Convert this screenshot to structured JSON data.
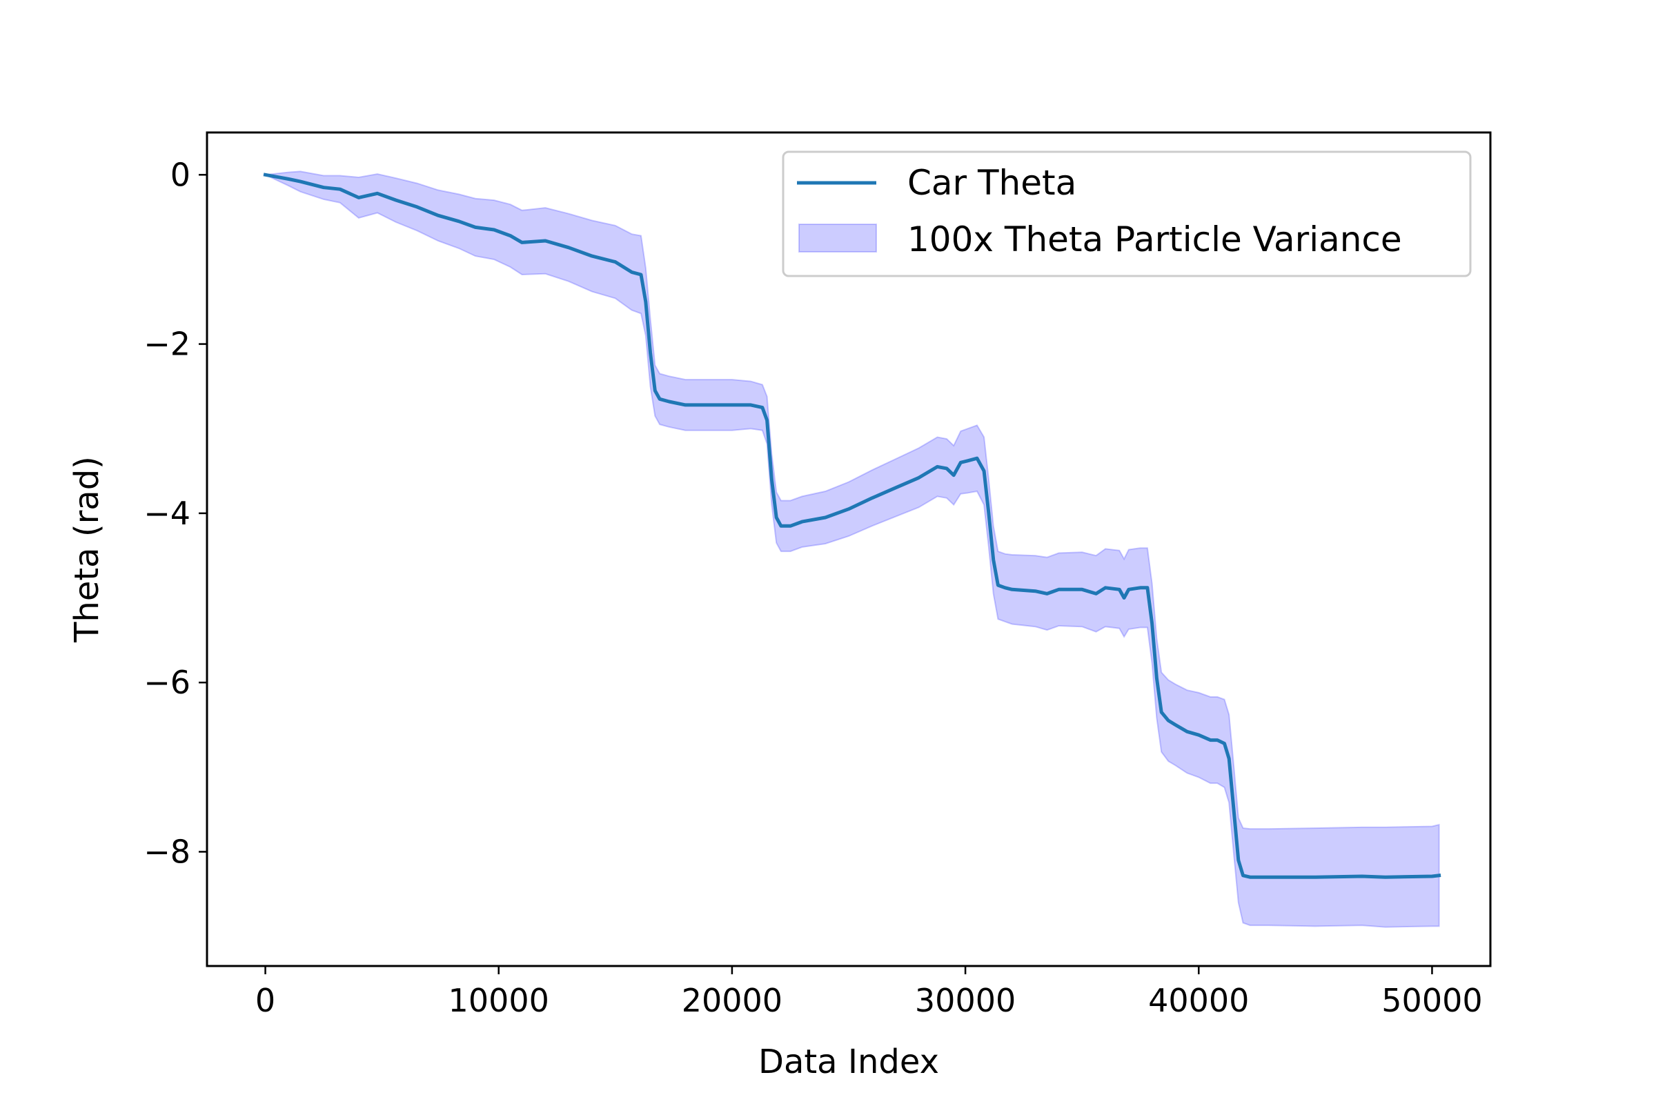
{
  "chart_data": {
    "type": "line",
    "title": "",
    "xlabel": "Data Index",
    "ylabel": "Theta (rad)",
    "xlim": [
      -2500,
      52500
    ],
    "ylim": [
      -9.35,
      0.5
    ],
    "xticks": [
      0,
      10000,
      20000,
      30000,
      40000,
      50000
    ],
    "xtick_labels": [
      "0",
      "10000",
      "20000",
      "30000",
      "40000",
      "50000"
    ],
    "yticks": [
      0,
      -2,
      -4,
      -6,
      -8
    ],
    "ytick_labels": [
      "0",
      "−2",
      "−4",
      "−6",
      "−8"
    ],
    "grid": false,
    "legend_position": "upper right",
    "colors": {
      "line": "#1f77b4",
      "band_fill": "#0000ff",
      "band_opacity": 0.2
    },
    "series": [
      {
        "name": "Car Theta",
        "kind": "line",
        "x": [
          0,
          1000,
          1500,
          2500,
          3200,
          4000,
          4800,
          5600,
          6500,
          7400,
          8300,
          9000,
          9800,
          10500,
          11000,
          12000,
          13000,
          14000,
          15000,
          15700,
          16100,
          16300,
          16500,
          16700,
          16900,
          17300,
          18000,
          19000,
          20000,
          20800,
          21300,
          21500,
          21700,
          21900,
          22100,
          22500,
          23000,
          24000,
          25000,
          26000,
          27000,
          28000,
          28800,
          29200,
          29500,
          29800,
          30100,
          30500,
          30800,
          31000,
          31200,
          31400,
          31700,
          32000,
          33000,
          33500,
          34000,
          35000,
          35600,
          36000,
          36600,
          36800,
          37000,
          37500,
          37800,
          38000,
          38200,
          38400,
          38700,
          39000,
          39500,
          40000,
          40500,
          40800,
          41100,
          41300,
          41500,
          41700,
          41900,
          42200,
          43000,
          45000,
          47000,
          48000,
          50000,
          50300
        ],
        "y": [
          0,
          -0.05,
          -0.08,
          -0.15,
          -0.17,
          -0.27,
          -0.22,
          -0.3,
          -0.38,
          -0.48,
          -0.55,
          -0.62,
          -0.65,
          -0.72,
          -0.8,
          -0.78,
          -0.86,
          -0.96,
          -1.03,
          -1.15,
          -1.18,
          -1.5,
          -2.1,
          -2.55,
          -2.65,
          -2.68,
          -2.72,
          -2.72,
          -2.72,
          -2.72,
          -2.75,
          -2.9,
          -3.6,
          -4.05,
          -4.15,
          -4.15,
          -4.1,
          -4.05,
          -3.95,
          -3.82,
          -3.7,
          -3.58,
          -3.45,
          -3.47,
          -3.55,
          -3.4,
          -3.38,
          -3.35,
          -3.5,
          -4.0,
          -4.55,
          -4.85,
          -4.88,
          -4.9,
          -4.92,
          -4.95,
          -4.9,
          -4.9,
          -4.95,
          -4.88,
          -4.9,
          -5.0,
          -4.9,
          -4.88,
          -4.88,
          -5.3,
          -5.95,
          -6.35,
          -6.45,
          -6.5,
          -6.58,
          -6.62,
          -6.68,
          -6.68,
          -6.72,
          -6.9,
          -7.5,
          -8.1,
          -8.28,
          -8.3,
          -8.3,
          -8.3,
          -8.29,
          -8.3,
          -8.29,
          -8.28
        ]
      },
      {
        "name": "100x Theta Particle Variance",
        "kind": "band",
        "x": [
          0,
          1000,
          1500,
          2500,
          3200,
          4000,
          4800,
          5600,
          6500,
          7400,
          8300,
          9000,
          9800,
          10500,
          11000,
          12000,
          13000,
          14000,
          15000,
          15700,
          16100,
          16300,
          16500,
          16700,
          16900,
          17300,
          18000,
          19000,
          20000,
          20800,
          21300,
          21500,
          21700,
          21900,
          22100,
          22500,
          23000,
          24000,
          25000,
          26000,
          27000,
          28000,
          28800,
          29200,
          29500,
          29800,
          30100,
          30500,
          30800,
          31000,
          31200,
          31400,
          31700,
          32000,
          33000,
          33500,
          34000,
          35000,
          35600,
          36000,
          36600,
          36800,
          37000,
          37500,
          37800,
          38000,
          38200,
          38400,
          38700,
          39000,
          39500,
          40000,
          40500,
          40800,
          41100,
          41300,
          41500,
          41700,
          41900,
          42200,
          43000,
          45000,
          47000,
          48000,
          50000,
          50300
        ],
        "y_upper": [
          0.0,
          0.03,
          0.04,
          -0.01,
          -0.01,
          -0.03,
          0.01,
          -0.04,
          -0.1,
          -0.18,
          -0.23,
          -0.28,
          -0.3,
          -0.35,
          -0.42,
          -0.39,
          -0.46,
          -0.54,
          -0.6,
          -0.7,
          -0.72,
          -1.1,
          -1.7,
          -2.25,
          -2.35,
          -2.38,
          -2.42,
          -2.42,
          -2.42,
          -2.44,
          -2.48,
          -2.62,
          -3.3,
          -3.75,
          -3.85,
          -3.85,
          -3.8,
          -3.74,
          -3.63,
          -3.49,
          -3.36,
          -3.23,
          -3.1,
          -3.12,
          -3.2,
          -3.03,
          -3.0,
          -2.96,
          -3.1,
          -3.6,
          -4.15,
          -4.45,
          -4.48,
          -4.49,
          -4.5,
          -4.52,
          -4.47,
          -4.46,
          -4.5,
          -4.42,
          -4.44,
          -4.54,
          -4.43,
          -4.41,
          -4.41,
          -4.83,
          -5.48,
          -5.88,
          -5.97,
          -6.02,
          -6.09,
          -6.12,
          -6.17,
          -6.17,
          -6.2,
          -6.38,
          -6.98,
          -7.6,
          -7.72,
          -7.73,
          -7.73,
          -7.72,
          -7.71,
          -7.71,
          -7.7,
          -7.68
        ],
        "y_lower": [
          0.0,
          -0.13,
          -0.2,
          -0.29,
          -0.33,
          -0.51,
          -0.45,
          -0.56,
          -0.66,
          -0.78,
          -0.87,
          -0.96,
          -1.0,
          -1.09,
          -1.18,
          -1.17,
          -1.26,
          -1.38,
          -1.46,
          -1.6,
          -1.64,
          -1.9,
          -2.5,
          -2.85,
          -2.95,
          -2.98,
          -3.02,
          -3.02,
          -3.02,
          -3.0,
          -3.02,
          -3.18,
          -3.9,
          -4.35,
          -4.45,
          -4.45,
          -4.4,
          -4.36,
          -4.27,
          -4.15,
          -4.04,
          -3.93,
          -3.8,
          -3.82,
          -3.9,
          -3.77,
          -3.76,
          -3.74,
          -3.9,
          -4.4,
          -4.95,
          -5.25,
          -5.28,
          -5.31,
          -5.34,
          -5.38,
          -5.33,
          -5.34,
          -5.4,
          -5.34,
          -5.36,
          -5.46,
          -5.37,
          -5.35,
          -5.35,
          -5.77,
          -6.42,
          -6.82,
          -6.93,
          -6.98,
          -7.07,
          -7.12,
          -7.19,
          -7.19,
          -7.24,
          -7.42,
          -8.02,
          -8.6,
          -8.84,
          -8.87,
          -8.87,
          -8.88,
          -8.87,
          -8.89,
          -8.88,
          -8.88
        ]
      }
    ]
  }
}
